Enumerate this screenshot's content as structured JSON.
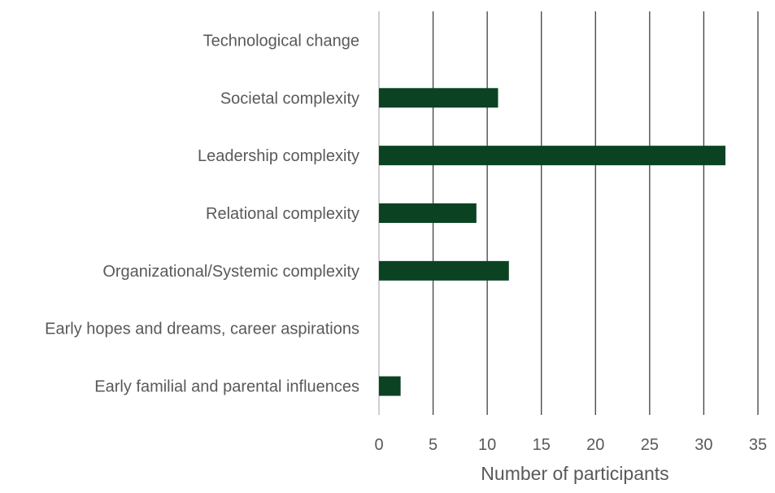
{
  "chart_data": {
    "type": "bar",
    "orientation": "horizontal",
    "categories": [
      "Technological change",
      "Societal complexity",
      "Leadership complexity",
      "Relational complexity",
      "Organizational/Systemic complexity",
      "Early hopes and dreams, career aspirations",
      "Early familial and parental influences"
    ],
    "values": [
      0,
      11,
      32,
      9,
      12,
      0,
      2
    ],
    "xlabel": "Number of participants",
    "ylabel": "",
    "xlim": [
      0,
      35
    ],
    "xticks": [
      0,
      5,
      10,
      15,
      20,
      25,
      30,
      35
    ],
    "grid": "vertical",
    "legend": "none",
    "colors": {
      "bar": "#0b4322",
      "gridline": "#404040",
      "baseline": "#bfbfbf",
      "text": "#595959"
    }
  }
}
